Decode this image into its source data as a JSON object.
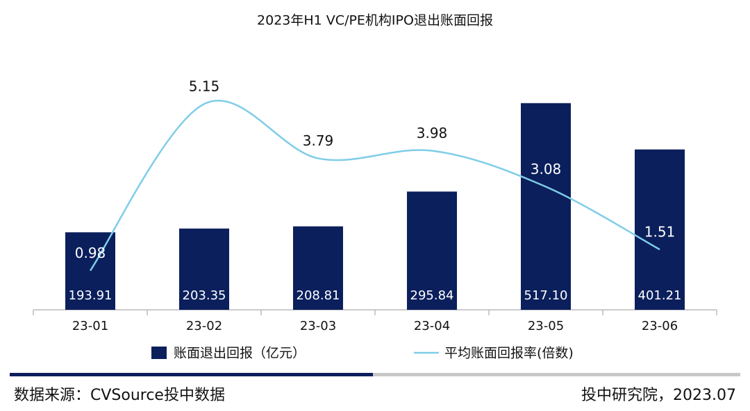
{
  "chart_data": {
    "type": "bar_line",
    "title": "2023年H1  VC/PE机构IPO退出账面回报",
    "categories": [
      "23-01",
      "23-02",
      "23-03",
      "23-04",
      "23-05",
      "23-06"
    ],
    "series": [
      {
        "name": "账面退出回报（亿元）",
        "type": "bar",
        "color": "#0b1f5c",
        "values": [
          193.91,
          203.35,
          208.81,
          295.84,
          517.1,
          401.21
        ],
        "value_labels": [
          "193.91",
          "203.35",
          "208.81",
          "295.84",
          "517.10",
          "401.21"
        ]
      },
      {
        "name": "平均账面回报率(倍数)",
        "type": "line",
        "axis": "y2",
        "color": "#7fcde8",
        "values": [
          0.98,
          5.15,
          3.79,
          3.98,
          3.08,
          1.51
        ]
      }
    ],
    "ylim": [
      0,
      600
    ],
    "y2lim": [
      0,
      6
    ],
    "source": "数据来源：CVSource投中数据",
    "credit": "投中研究院，2023.07"
  }
}
